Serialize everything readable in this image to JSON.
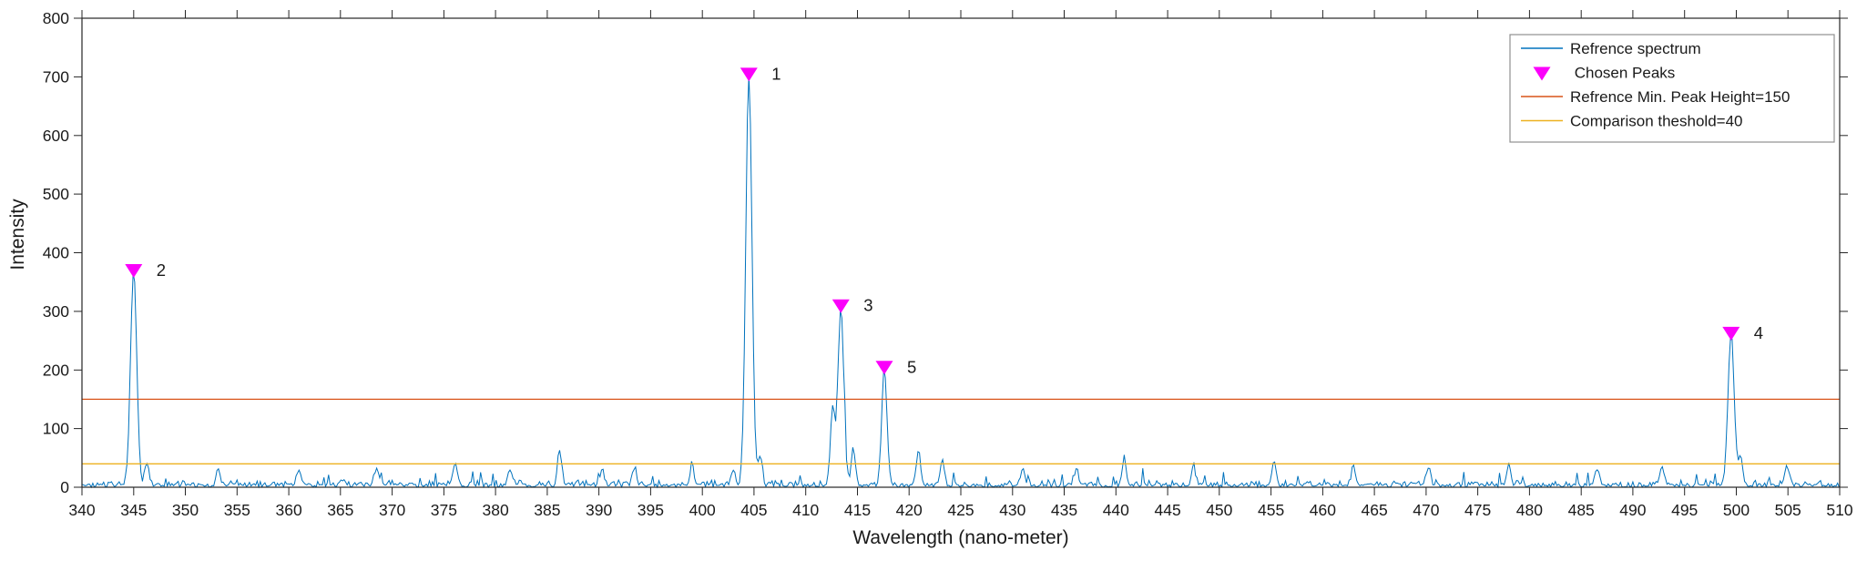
{
  "chart_data": {
    "type": "line",
    "title": "",
    "xlabel": "Wavelength (nano-meter)",
    "ylabel": "Intensity",
    "xlim": [
      340,
      510
    ],
    "ylim": [
      0,
      800
    ],
    "x_tick_step": 5,
    "y_tick_step": 100,
    "grid": false,
    "axis_color": "#262626",
    "series_name": "Refrence spectrum",
    "series_color": "#0072BD",
    "marker_color": "#FB00FB",
    "noise": {
      "seed": 42,
      "step": 0.15,
      "base": 13,
      "spike_prob": 0.055,
      "spike": 24
    },
    "main_peaks": [
      {
        "label": "1",
        "x": 404.5,
        "y": 700,
        "sigma": 0.3
      },
      {
        "label": "2",
        "x": 345.0,
        "y": 365,
        "sigma": 0.3
      },
      {
        "label": "3",
        "x": 413.4,
        "y": 305,
        "sigma": 0.28
      },
      {
        "label": "4",
        "x": 499.5,
        "y": 258,
        "sigma": 0.3
      },
      {
        "label": "5",
        "x": 417.6,
        "y": 200,
        "sigma": 0.25
      }
    ],
    "minor_peaks": [
      {
        "x": 346.3,
        "y": 40,
        "sigma": 0.2
      },
      {
        "x": 353.2,
        "y": 24,
        "sigma": 0.2
      },
      {
        "x": 361.0,
        "y": 22,
        "sigma": 0.2
      },
      {
        "x": 368.5,
        "y": 30,
        "sigma": 0.2
      },
      {
        "x": 376.1,
        "y": 38,
        "sigma": 0.2
      },
      {
        "x": 381.4,
        "y": 26,
        "sigma": 0.2
      },
      {
        "x": 386.2,
        "y": 60,
        "sigma": 0.2
      },
      {
        "x": 390.3,
        "y": 28,
        "sigma": 0.2
      },
      {
        "x": 393.4,
        "y": 30,
        "sigma": 0.2
      },
      {
        "x": 399.0,
        "y": 32,
        "sigma": 0.2
      },
      {
        "x": 403.0,
        "y": 28,
        "sigma": 0.2
      },
      {
        "x": 405.6,
        "y": 50,
        "sigma": 0.2
      },
      {
        "x": 412.6,
        "y": 128,
        "sigma": 0.22
      },
      {
        "x": 414.6,
        "y": 62,
        "sigma": 0.2
      },
      {
        "x": 420.9,
        "y": 58,
        "sigma": 0.2
      },
      {
        "x": 423.2,
        "y": 45,
        "sigma": 0.2
      },
      {
        "x": 431.0,
        "y": 30,
        "sigma": 0.2
      },
      {
        "x": 436.2,
        "y": 26,
        "sigma": 0.2
      },
      {
        "x": 440.8,
        "y": 38,
        "sigma": 0.2
      },
      {
        "x": 447.5,
        "y": 32,
        "sigma": 0.2
      },
      {
        "x": 455.3,
        "y": 44,
        "sigma": 0.2
      },
      {
        "x": 463.0,
        "y": 30,
        "sigma": 0.2
      },
      {
        "x": 470.2,
        "y": 32,
        "sigma": 0.2
      },
      {
        "x": 478.0,
        "y": 34,
        "sigma": 0.2
      },
      {
        "x": 486.5,
        "y": 30,
        "sigma": 0.2
      },
      {
        "x": 492.8,
        "y": 33,
        "sigma": 0.2
      },
      {
        "x": 500.4,
        "y": 46,
        "sigma": 0.2
      },
      {
        "x": 504.9,
        "y": 30,
        "sigma": 0.2
      }
    ],
    "threshold_lines": [
      {
        "label": "Refrence Min. Peak Height=150",
        "y": 150,
        "color": "#D95319"
      },
      {
        "label": "Comparison theshold=40",
        "y": 40,
        "color": "#EDB120"
      }
    ],
    "legend": {
      "position": "top-right",
      "entries": [
        {
          "label": "Refrence spectrum",
          "type": "line",
          "color": "#0072BD"
        },
        {
          "label": " Chosen Peaks",
          "type": "triangle",
          "color": "#FB00FB"
        },
        {
          "label": "Refrence Min. Peak Height=150",
          "type": "line",
          "color": "#D95319"
        },
        {
          "label": "Comparison theshold=40",
          "type": "line",
          "color": "#EDB120"
        }
      ]
    }
  }
}
